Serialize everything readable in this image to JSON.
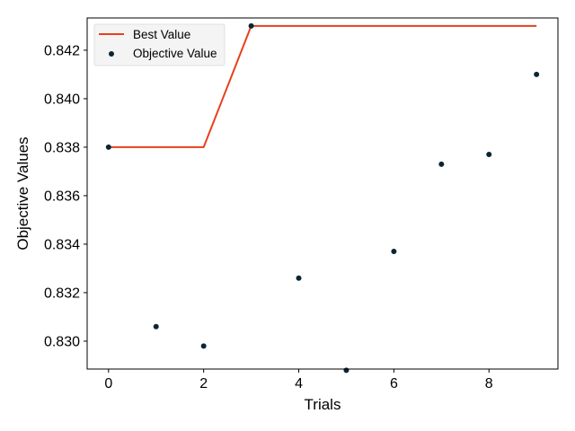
{
  "chart_data": {
    "type": "line",
    "title": "",
    "xlabel": "Trials",
    "ylabel": "Objective Values",
    "xlim": [
      -0.45,
      9.45
    ],
    "ylim": [
      0.82885,
      0.84333
    ],
    "xticks": [
      0,
      2,
      4,
      6,
      8
    ],
    "xtick_labels": [
      "0",
      "2",
      "4",
      "6",
      "8"
    ],
    "yticks": [
      0.83,
      0.832,
      0.834,
      0.836,
      0.838,
      0.84,
      0.842
    ],
    "ytick_labels": [
      "0.830",
      "0.832",
      "0.834",
      "0.836",
      "0.838",
      "0.840",
      "0.842"
    ],
    "grid": false,
    "legend": "top-left",
    "series": [
      {
        "name": "Best Value",
        "type": "line",
        "color": "#e8401c",
        "x": [
          0,
          1,
          2,
          3,
          4,
          5,
          6,
          7,
          8,
          9
        ],
        "y": [
          0.838,
          0.838,
          0.838,
          0.843,
          0.843,
          0.843,
          0.843,
          0.843,
          0.843,
          0.843
        ]
      },
      {
        "name": "Objective Value",
        "type": "scatter",
        "color": "#0b2535",
        "x": [
          0,
          1,
          2,
          3,
          4,
          5,
          6,
          7,
          8,
          9
        ],
        "y": [
          0.838,
          0.8306,
          0.8298,
          0.843,
          0.8326,
          0.8288,
          0.8337,
          0.8373,
          0.8377,
          0.841
        ]
      }
    ]
  }
}
